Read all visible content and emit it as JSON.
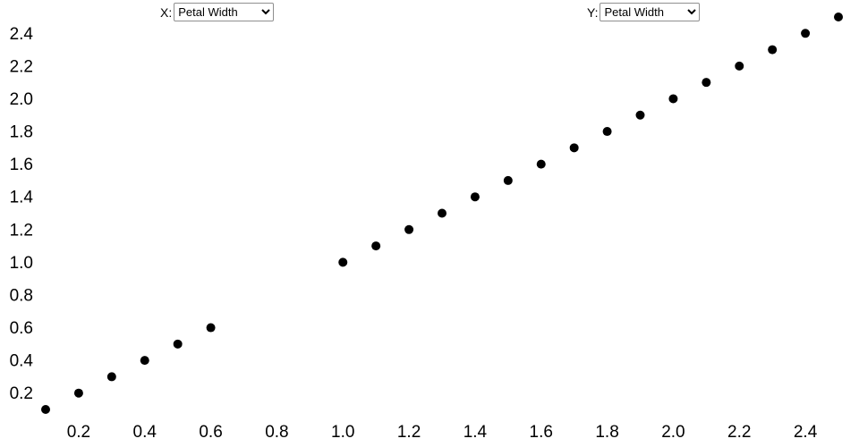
{
  "controls": {
    "x_label": "X:",
    "x_select": {
      "selected": "Petal Width",
      "options": [
        "Petal Width"
      ]
    },
    "y_label": "Y:",
    "y_select": {
      "selected": "Petal Width",
      "options": [
        "Petal Width"
      ]
    }
  },
  "chart_data": {
    "type": "scatter",
    "title": "",
    "x_field": "Petal Width",
    "y_field": "Petal Width",
    "values": [
      0.1,
      0.2,
      0.3,
      0.4,
      0.5,
      0.6,
      1.0,
      1.1,
      1.2,
      1.3,
      1.4,
      1.5,
      1.6,
      1.7,
      1.8,
      1.9,
      2.0,
      2.1,
      2.2,
      2.3,
      2.4,
      2.5
    ],
    "note_points_lie_on_identity_line": "x equals y for every point",
    "x_ticks": [
      0.2,
      0.4,
      0.6,
      0.8,
      1.0,
      1.2,
      1.4,
      1.6,
      1.8,
      2.0,
      2.2,
      2.4
    ],
    "y_ticks": [
      0.2,
      0.4,
      0.6,
      0.8,
      1.0,
      1.2,
      1.4,
      1.6,
      1.8,
      2.0,
      2.2,
      2.4
    ],
    "xlim": [
      0.1,
      2.5
    ],
    "ylim": [
      0.1,
      2.5
    ],
    "grid": false,
    "legend": false,
    "point_color": "#000000",
    "point_radius": 5
  }
}
